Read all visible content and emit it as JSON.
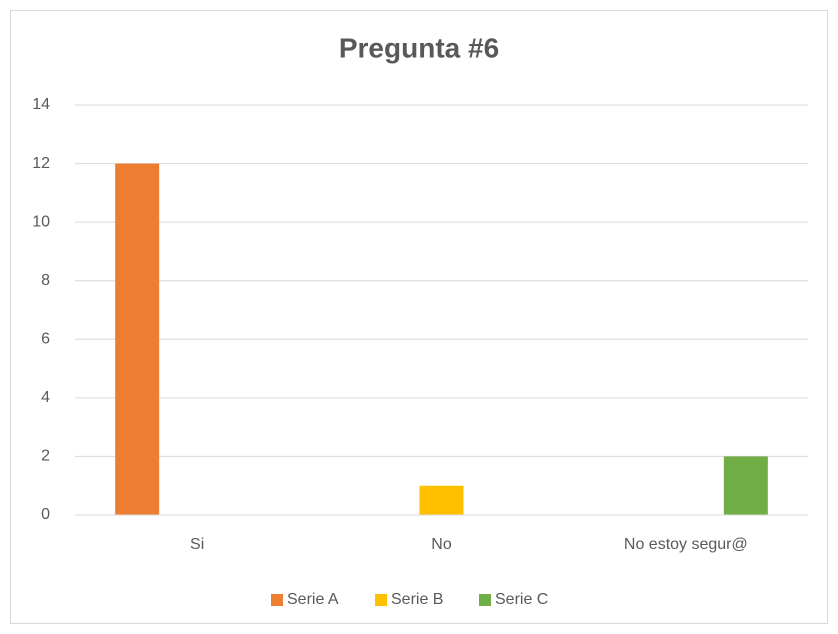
{
  "chart_data": {
    "type": "bar",
    "title": "Pregunta #6",
    "categories": [
      "Si",
      "No",
      "No estoy segur@"
    ],
    "series": [
      {
        "name": "Serie A",
        "color": "#ed7d31",
        "values": [
          12,
          null,
          null
        ]
      },
      {
        "name": "Serie B",
        "color": "#ffc000",
        "values": [
          null,
          1,
          null
        ]
      },
      {
        "name": "Serie C",
        "color": "#70ad47",
        "values": [
          null,
          null,
          2
        ]
      }
    ],
    "ylim": [
      0,
      14
    ],
    "yticks": [
      0,
      2,
      4,
      6,
      8,
      10,
      12,
      14
    ],
    "grid": true,
    "legend": "bottom"
  }
}
